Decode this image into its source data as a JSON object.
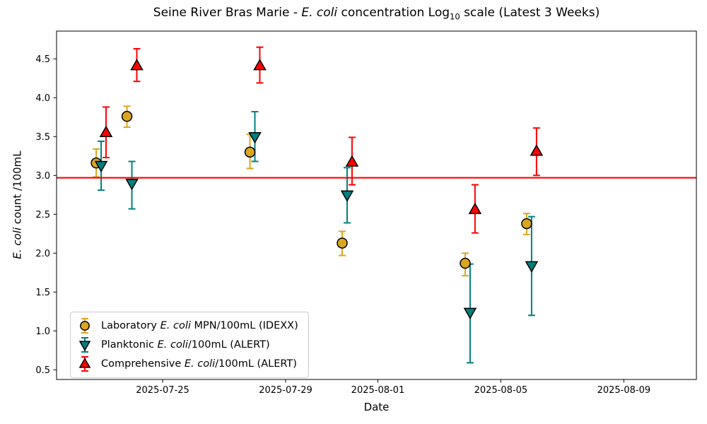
{
  "chart_data": {
    "type": "scatter",
    "title_parts": [
      {
        "text": "Seine River Bras Marie - "
      },
      {
        "text": "E. coli",
        "style": "italic"
      },
      {
        "text": " concentration Log"
      },
      {
        "text": "10",
        "style": "sub"
      },
      {
        "text": " scale (Latest 3 Weeks)"
      }
    ],
    "xlabel": "Date",
    "ylabel_parts": [
      {
        "text": "E. coli",
        "style": "italic"
      },
      {
        "text": " count /100mL"
      }
    ],
    "x_ref_date": "2025-07-25",
    "x_ticks": [
      "2025-07-25",
      "2025-07-29",
      "2025-08-01",
      "2025-08-05",
      "2025-08-09"
    ],
    "y_ticks": [
      "0.5",
      "1.0",
      "1.5",
      "2.0",
      "2.5",
      "3.0",
      "3.5",
      "4.0",
      "4.5"
    ],
    "ylim": [
      0.375,
      4.857
    ],
    "xlim_days": [
      -3.45,
      17.36
    ],
    "grid": false,
    "legend_position": "lower-left",
    "threshold_line": {
      "value": 2.97,
      "color": "#ff0000"
    },
    "series": [
      {
        "name": "laboratory",
        "marker": "circle",
        "color": "#DAA520",
        "edge_color": "#000000",
        "dodge_days": -0.16,
        "label_parts": [
          {
            "text": "Laboratory "
          },
          {
            "text": "E. coli",
            "style": "italic"
          },
          {
            "text": " MPN/100mL (IDEXX)"
          }
        ],
        "points": [
          {
            "date": "2025-07-23",
            "value": 3.16,
            "err_plus": 0.18,
            "err_minus": 0.18
          },
          {
            "date": "2025-07-24",
            "value": 3.76,
            "err_plus": 0.13,
            "err_minus": 0.14
          },
          {
            "date": "2025-07-28",
            "value": 3.3,
            "err_plus": 0.23,
            "err_minus": 0.21
          },
          {
            "date": "2025-07-31",
            "value": 2.13,
            "err_plus": 0.15,
            "err_minus": 0.16
          },
          {
            "date": "2025-08-04",
            "value": 1.87,
            "err_plus": 0.13,
            "err_minus": 0.16
          },
          {
            "date": "2025-08-06",
            "value": 2.38,
            "err_plus": 0.13,
            "err_minus": 0.14
          }
        ]
      },
      {
        "name": "planktonic",
        "marker": "triangle-down",
        "color": "#008080",
        "edge_color": "#000000",
        "dodge_days": 0,
        "label_parts": [
          {
            "text": "Planktonic "
          },
          {
            "text": "E. coli",
            "style": "italic"
          },
          {
            "text": "/100mL (ALERT)"
          }
        ],
        "points": [
          {
            "date": "2025-07-23",
            "value": 3.13,
            "err_plus": 0.31,
            "err_minus": 0.32
          },
          {
            "date": "2025-07-24",
            "value": 2.9,
            "err_plus": 0.28,
            "err_minus": 0.33
          },
          {
            "date": "2025-07-28",
            "value": 3.5,
            "err_plus": 0.32,
            "err_minus": 0.32
          },
          {
            "date": "2025-07-31",
            "value": 2.75,
            "err_plus": 0.35,
            "err_minus": 0.36
          },
          {
            "date": "2025-08-04",
            "value": 1.24,
            "err_plus": 0.62,
            "err_minus": 0.65
          },
          {
            "date": "2025-08-06",
            "value": 1.84,
            "err_plus": 0.63,
            "err_minus": 0.64
          }
        ]
      },
      {
        "name": "comprehensive",
        "marker": "triangle-up",
        "color": "#FF0000",
        "edge_color": "#000000",
        "dodge_days": 0.16,
        "label_parts": [
          {
            "text": "Comprehensive "
          },
          {
            "text": "E. coli",
            "style": "italic"
          },
          {
            "text": "/100mL (ALERT)"
          }
        ],
        "points": [
          {
            "date": "2025-07-23",
            "value": 3.55,
            "err_plus": 0.33,
            "err_minus": 0.32
          },
          {
            "date": "2025-07-24",
            "value": 4.41,
            "err_plus": 0.22,
            "err_minus": 0.2
          },
          {
            "date": "2025-07-28",
            "value": 4.41,
            "err_plus": 0.24,
            "err_minus": 0.22
          },
          {
            "date": "2025-07-31",
            "value": 3.17,
            "err_plus": 0.32,
            "err_minus": 0.29
          },
          {
            "date": "2025-08-04",
            "value": 2.56,
            "err_plus": 0.32,
            "err_minus": 0.3
          },
          {
            "date": "2025-08-06",
            "value": 3.31,
            "err_plus": 0.3,
            "err_minus": 0.31
          }
        ]
      }
    ]
  }
}
